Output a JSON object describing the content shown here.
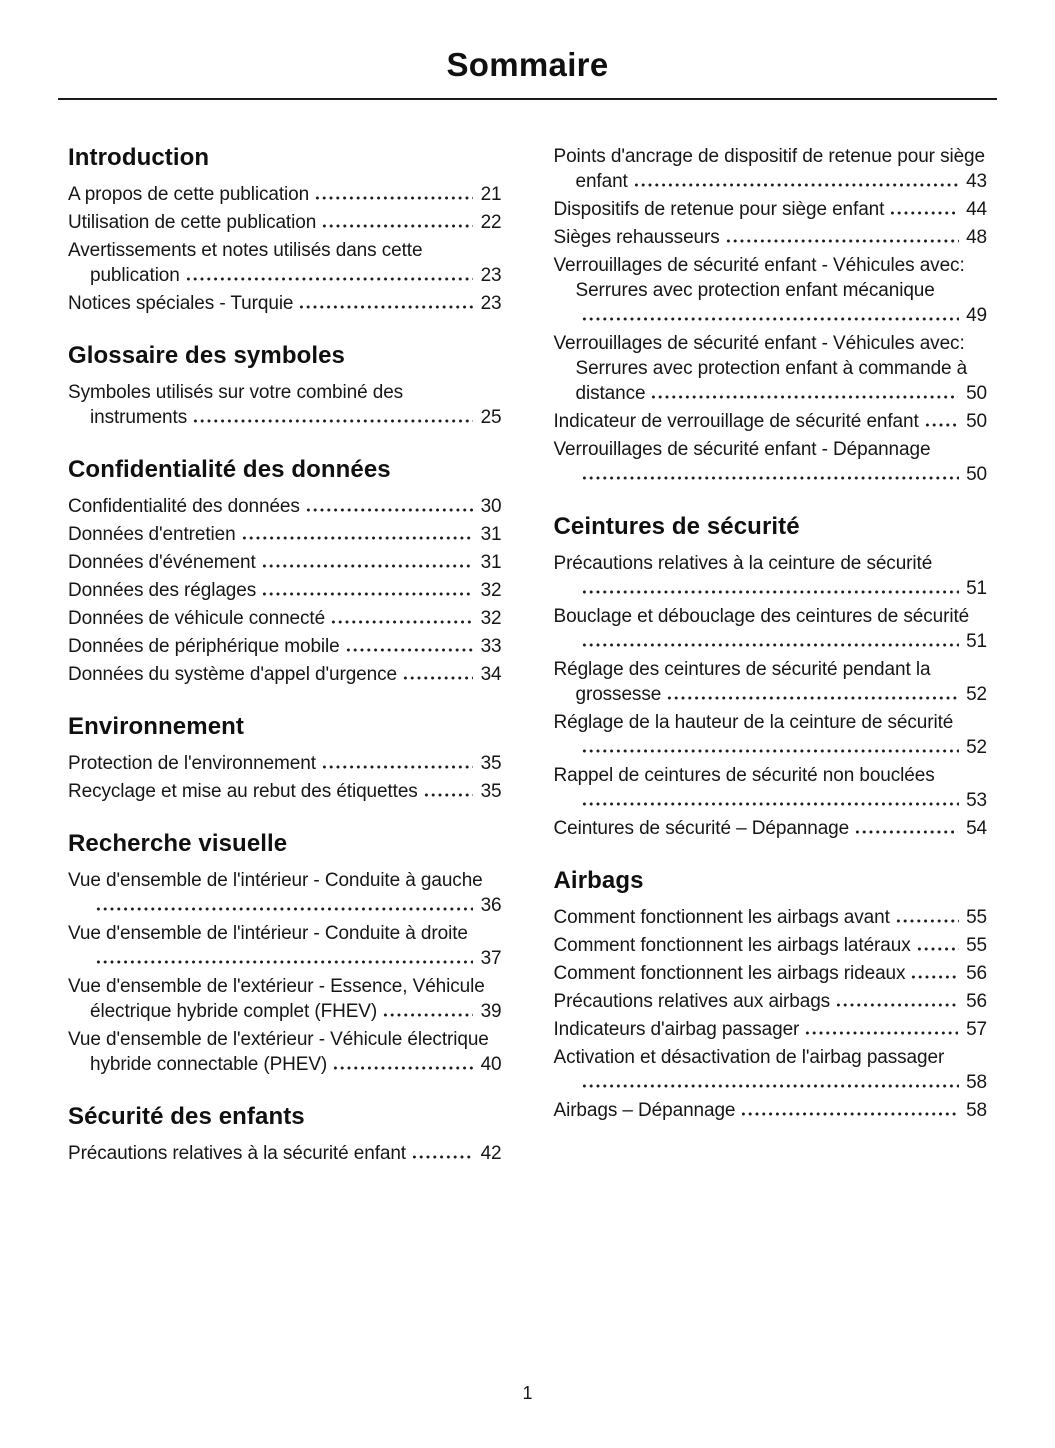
{
  "page": {
    "title": "Sommaire",
    "page_number": "1"
  },
  "columns": [
    {
      "sections": [
        {
          "heading": "Introduction",
          "entries": [
            {
              "text": "A propos de cette publication",
              "page": "21"
            },
            {
              "text": "Utilisation de cette publication",
              "page": "22"
            },
            {
              "text": "Avertissements et notes utilisés dans cette publication",
              "page": "23"
            },
            {
              "text": "Notices spéciales - Turquie",
              "page": "23"
            }
          ]
        },
        {
          "heading": "Glossaire des symboles",
          "entries": [
            {
              "text": "Symboles utilisés sur votre combiné des instruments",
              "page": "25"
            }
          ]
        },
        {
          "heading": "Confidentialité des données",
          "entries": [
            {
              "text": "Confidentialité des données",
              "page": "30"
            },
            {
              "text": "Données d'entretien",
              "page": "31"
            },
            {
              "text": "Données d'événement",
              "page": "31"
            },
            {
              "text": "Données des réglages",
              "page": "32"
            },
            {
              "text": "Données de véhicule connecté",
              "page": "32"
            },
            {
              "text": "Données de périphérique mobile",
              "page": "33"
            },
            {
              "text": "Données du système d'appel d'urgence",
              "page": "34"
            }
          ]
        },
        {
          "heading": "Environnement",
          "entries": [
            {
              "text": "Protection de l'environnement",
              "page": "35"
            },
            {
              "text": "Recyclage et mise au rebut des étiquettes",
              "page": "35"
            }
          ]
        },
        {
          "heading": "Recherche visuelle",
          "entries": [
            {
              "text": "Vue d'ensemble de l'intérieur - Conduite à gauche",
              "page": "36"
            },
            {
              "text": "Vue d'ensemble de l'intérieur - Conduite à droite",
              "page": "37"
            },
            {
              "text": "Vue d'ensemble de l'extérieur - Essence, Véhicule électrique hybride complet (FHEV)",
              "page": "39"
            },
            {
              "text": "Vue d'ensemble de l'extérieur - Véhicule électrique hybride connectable (PHEV)",
              "page": "40"
            }
          ]
        },
        {
          "heading": "Sécurité des enfants",
          "entries": [
            {
              "text": "Précautions relatives à la sécurité enfant",
              "page": "42"
            }
          ]
        }
      ]
    },
    {
      "sections": [
        {
          "heading": "",
          "entries": [
            {
              "text": "Points d'ancrage de dispositif de retenue pour siège enfant",
              "page": "43"
            },
            {
              "text": "Dispositifs de retenue pour siège enfant",
              "page": "44"
            },
            {
              "text": "Sièges rehausseurs",
              "page": "48"
            },
            {
              "text": "Verrouillages de sécurité enfant - Véhicules avec: Serrures avec protection enfant mécanique",
              "page": "49"
            },
            {
              "text": "Verrouillages de sécurité enfant - Véhicules avec: Serrures avec protection enfant à commande à distance",
              "page": "50"
            },
            {
              "text": "Indicateur de verrouillage de sécurité enfant",
              "page": "50"
            },
            {
              "text": "Verrouillages de sécurité enfant - Dépannage",
              "page": "50"
            }
          ]
        },
        {
          "heading": "Ceintures de sécurité",
          "entries": [
            {
              "text": "Précautions relatives à la ceinture de sécurité",
              "page": "51"
            },
            {
              "text": "Bouclage et débouclage des ceintures de sécurité",
              "page": "51"
            },
            {
              "text": "Réglage des ceintures de sécurité pendant la grossesse",
              "page": "52"
            },
            {
              "text": "Réglage de la hauteur de la ceinture de sécurité",
              "page": "52"
            },
            {
              "text": "Rappel de ceintures de sécurité non bouclées",
              "page": "53"
            },
            {
              "text": "Ceintures de sécurité – Dépannage",
              "page": "54"
            }
          ]
        },
        {
          "heading": "Airbags",
          "entries": [
            {
              "text": "Comment fonctionnent les airbags avant",
              "page": "55"
            },
            {
              "text": "Comment fonctionnent les airbags latéraux",
              "page": "55"
            },
            {
              "text": "Comment fonctionnent les airbags rideaux",
              "page": "56"
            },
            {
              "text": "Précautions relatives aux airbags",
              "page": "56"
            },
            {
              "text": "Indicateurs d'airbag passager",
              "page": "57"
            },
            {
              "text": "Activation et désactivation de l'airbag passager",
              "page": "58"
            },
            {
              "text": "Airbags – Dépannage",
              "page": "58"
            }
          ]
        }
      ]
    }
  ]
}
